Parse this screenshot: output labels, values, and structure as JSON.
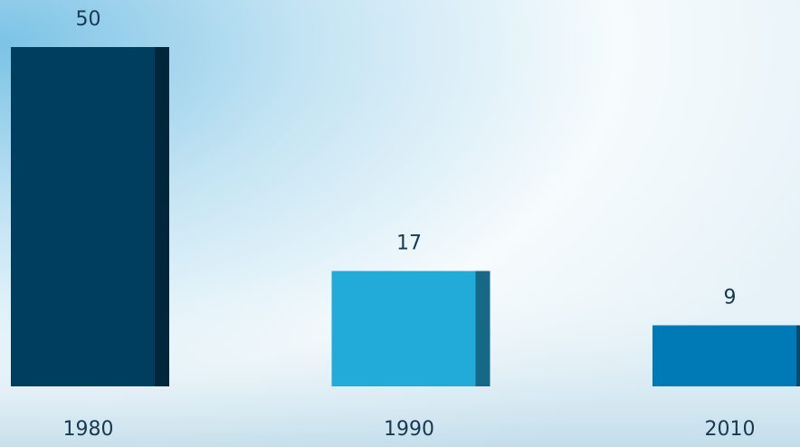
{
  "chart_data": {
    "type": "bar",
    "categories": [
      "1980",
      "1990",
      "2010"
    ],
    "values": [
      50,
      17,
      9
    ],
    "colors": [
      "#003e5f",
      "#22aad9",
      "#0079b7"
    ]
  }
}
